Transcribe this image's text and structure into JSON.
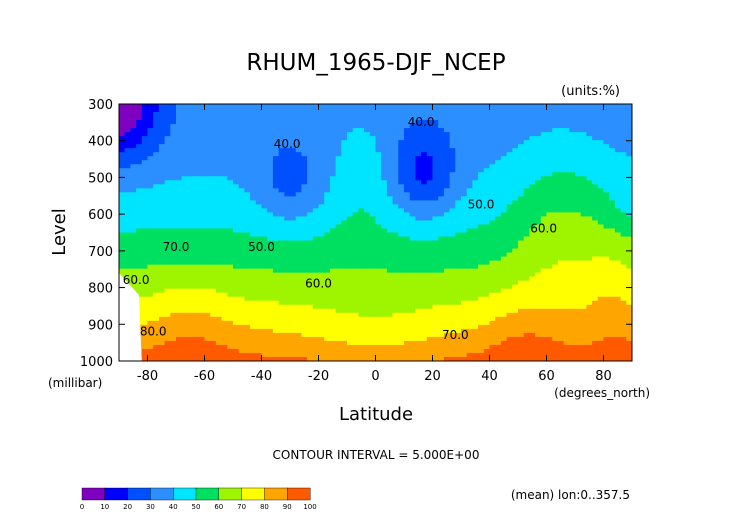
{
  "chart_data": {
    "type": "heatmap",
    "title": "RHUM_1965-DJF_NCEP",
    "units_label": "(units:%)",
    "xlabel": "Latitude",
    "x_units_label": "(degrees_north)",
    "ylabel": "Level",
    "y_units_label": "(millibar)",
    "xlim": [
      -90,
      90
    ],
    "ylim": [
      1000,
      300
    ],
    "x_ticks": [
      "-80",
      "-60",
      "-40",
      "-20",
      "0",
      "20",
      "40",
      "60",
      "80"
    ],
    "x_tick_values": [
      -80,
      -60,
      -40,
      -20,
      0,
      20,
      40,
      60,
      80
    ],
    "y_ticks": [
      "300",
      "400",
      "500",
      "600",
      "700",
      "800",
      "900",
      "1000"
    ],
    "y_tick_values": [
      300,
      400,
      500,
      600,
      700,
      800,
      900,
      1000
    ],
    "contour_interval_label": "CONTOUR INTERVAL = 5.000E+00",
    "footer_label": "(mean) lon:0..357.5",
    "colorbar": {
      "levels": [
        0,
        10,
        20,
        30,
        40,
        50,
        60,
        70,
        80,
        90,
        100
      ],
      "tick_labels": [
        "0",
        "10",
        "20",
        "30",
        "40",
        "50",
        "60",
        "70",
        "80",
        "90",
        "100"
      ],
      "colors": [
        "#7f00bf",
        "#0000ff",
        "#0050ff",
        "#2c8fff",
        "#00e5ff",
        "#00e060",
        "#9ff500",
        "#ffff00",
        "#ffa500",
        "#ff5a00",
        "#ff0000"
      ]
    },
    "contour_labels": [
      {
        "text": "40.0",
        "lat": -31,
        "lev": 420
      },
      {
        "text": "40.0",
        "lat": 16,
        "lev": 360
      },
      {
        "text": "50.0",
        "lat": -40,
        "lev": 700
      },
      {
        "text": "50.0",
        "lat": 37,
        "lev": 585
      },
      {
        "text": "60.0",
        "lat": -84,
        "lev": 790
      },
      {
        "text": "60.0",
        "lat": -20,
        "lev": 800
      },
      {
        "text": "60.0",
        "lat": 59,
        "lev": 650
      },
      {
        "text": "70.0",
        "lat": -70,
        "lev": 700
      },
      {
        "text": "70.0",
        "lat": 28,
        "lev": 940
      },
      {
        "text": "80.0",
        "lat": -78,
        "lev": 930
      }
    ],
    "grid": false
  }
}
